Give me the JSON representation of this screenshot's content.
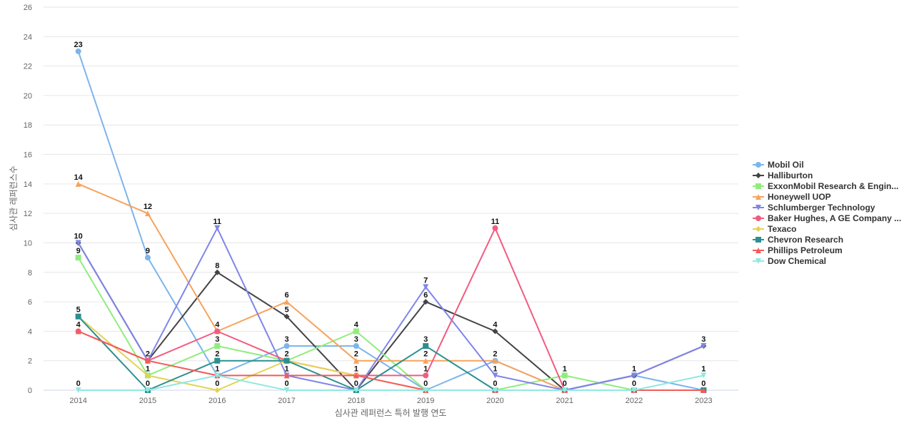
{
  "chart_data": {
    "type": "line",
    "xlabel": "심사관 레퍼런스 특허 발행 연도",
    "ylabel": "심사관 레퍼런스수",
    "categories": [
      "2014",
      "2015",
      "2016",
      "2017",
      "2018",
      "2019",
      "2020",
      "2021",
      "2022",
      "2023"
    ],
    "ylim": [
      0,
      26
    ],
    "yticks": [
      0,
      2,
      4,
      6,
      8,
      10,
      12,
      14,
      16,
      18,
      20,
      22,
      24,
      26
    ],
    "grid": true,
    "legend_position": "right",
    "series": [
      {
        "name": "Mobil Oil",
        "color": "#7cb5ec",
        "marker": "circle",
        "values": [
          23,
          9,
          1,
          3,
          3,
          0,
          2,
          0,
          1,
          0
        ]
      },
      {
        "name": "Halliburton",
        "color": "#434348",
        "marker": "diamond",
        "values": [
          10,
          2,
          8,
          5,
          0,
          6,
          4,
          0,
          1,
          3
        ]
      },
      {
        "name": "ExxonMobil Research & Engin...",
        "color": "#90ed7d",
        "marker": "square",
        "values": [
          9,
          1,
          3,
          2,
          4,
          0,
          0,
          1,
          0,
          0
        ]
      },
      {
        "name": "Honeywell UOP",
        "color": "#f7a35c",
        "marker": "triangle",
        "values": [
          14,
          12,
          4,
          6,
          2,
          2,
          2,
          0,
          0,
          0
        ]
      },
      {
        "name": "Schlumberger Technology",
        "color": "#8085e9",
        "marker": "triangle-down",
        "values": [
          10,
          2,
          11,
          1,
          0,
          7,
          1,
          0,
          1,
          3
        ]
      },
      {
        "name": "Baker Hughes, A GE Company ...",
        "color": "#f15c80",
        "marker": "circle",
        "values": [
          4,
          2,
          4,
          2,
          1,
          1,
          11,
          0,
          0,
          0
        ]
      },
      {
        "name": "Texaco",
        "color": "#e4d354",
        "marker": "diamond",
        "values": [
          5,
          1,
          0,
          2,
          1,
          0,
          0,
          0,
          0,
          0
        ]
      },
      {
        "name": "Chevron Research",
        "color": "#2b908f",
        "marker": "square",
        "values": [
          5,
          0,
          2,
          2,
          0,
          3,
          0,
          0,
          0,
          0
        ]
      },
      {
        "name": "Phillips Petroleum",
        "color": "#f45b5b",
        "marker": "triangle",
        "values": [
          4,
          2,
          1,
          1,
          1,
          0,
          0,
          0,
          0,
          0
        ]
      },
      {
        "name": "Dow Chemical",
        "color": "#91e8e1",
        "marker": "triangle-down",
        "values": [
          0,
          0,
          1,
          0,
          0,
          0,
          0,
          0,
          0,
          1
        ]
      }
    ],
    "data_labels": [
      {
        "category": "2014",
        "value": 23
      },
      {
        "category": "2014",
        "value": 14
      },
      {
        "category": "2014",
        "value": 10
      },
      {
        "category": "2014",
        "value": 9
      },
      {
        "category": "2014",
        "value": 5
      },
      {
        "category": "2014",
        "value": 4
      },
      {
        "category": "2014",
        "value": 0
      },
      {
        "category": "2015",
        "value": 12
      },
      {
        "category": "2015",
        "value": 9
      },
      {
        "category": "2015",
        "value": 2
      },
      {
        "category": "2015",
        "value": 1
      },
      {
        "category": "2015",
        "value": 0
      },
      {
        "category": "2016",
        "value": 11
      },
      {
        "category": "2016",
        "value": 8
      },
      {
        "category": "2016",
        "value": 4
      },
      {
        "category": "2016",
        "value": 3
      },
      {
        "category": "2016",
        "value": 2
      },
      {
        "category": "2016",
        "value": 1
      },
      {
        "category": "2016",
        "value": 0
      },
      {
        "category": "2017",
        "value": 6
      },
      {
        "category": "2017",
        "value": 5
      },
      {
        "category": "2017",
        "value": 3
      },
      {
        "category": "2017",
        "value": 2
      },
      {
        "category": "2017",
        "value": 1
      },
      {
        "category": "2017",
        "value": 0
      },
      {
        "category": "2018",
        "value": 4
      },
      {
        "category": "2018",
        "value": 3
      },
      {
        "category": "2018",
        "value": 2
      },
      {
        "category": "2018",
        "value": 1
      },
      {
        "category": "2018",
        "value": 0
      },
      {
        "category": "2019",
        "value": 7
      },
      {
        "category": "2019",
        "value": 6
      },
      {
        "category": "2019",
        "value": 3
      },
      {
        "category": "2019",
        "value": 2
      },
      {
        "category": "2019",
        "value": 1
      },
      {
        "category": "2019",
        "value": 0
      },
      {
        "category": "2020",
        "value": 11
      },
      {
        "category": "2020",
        "value": 4
      },
      {
        "category": "2020",
        "value": 2
      },
      {
        "category": "2020",
        "value": 1
      },
      {
        "category": "2020",
        "value": 0
      },
      {
        "category": "2021",
        "value": 1
      },
      {
        "category": "2021",
        "value": 0
      },
      {
        "category": "2022",
        "value": 1
      },
      {
        "category": "2022",
        "value": 0
      },
      {
        "category": "2023",
        "value": 3
      },
      {
        "category": "2023",
        "value": 1
      },
      {
        "category": "2023",
        "value": 0
      }
    ]
  }
}
